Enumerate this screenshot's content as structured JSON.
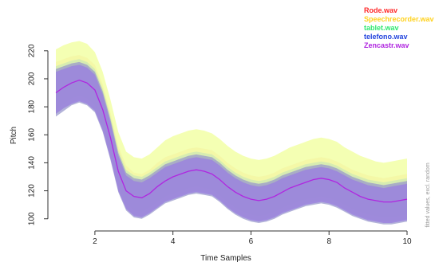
{
  "chart_data": {
    "type": "area",
    "xlabel": "Time Samples",
    "ylabel": "Pitch",
    "side_note": "fitted values, excl. random",
    "xlim": [
      1,
      10
    ],
    "ylim": [
      97,
      225
    ],
    "xticks": [
      2,
      4,
      6,
      8,
      10
    ],
    "yticks": [
      100,
      120,
      140,
      160,
      180,
      200,
      220
    ],
    "grid": false,
    "legend_position": "top-right",
    "x": [
      1,
      1.2,
      1.4,
      1.6,
      1.8,
      2,
      2.2,
      2.4,
      2.6,
      2.8,
      3,
      3.2,
      3.4,
      3.6,
      3.8,
      4,
      4.2,
      4.4,
      4.6,
      4.8,
      5,
      5.2,
      5.4,
      5.6,
      5.8,
      6,
      6.2,
      6.4,
      6.6,
      6.8,
      7,
      7.2,
      7.4,
      7.6,
      7.8,
      8,
      8.2,
      8.4,
      8.6,
      8.8,
      9,
      9.2,
      9.4,
      9.6,
      9.8,
      10
    ],
    "series": [
      {
        "name": "Rode.wav",
        "color": "#ff2a2a",
        "fill": "#ffc8a0",
        "upper": [
          212,
          214,
          216,
          217,
          215,
          210,
          196,
          176,
          152,
          138,
          133,
          132,
          135,
          140,
          144,
          146,
          148,
          150,
          151,
          150,
          149,
          145,
          140,
          136,
          133,
          131,
          130,
          131,
          133,
          136,
          138,
          140,
          142,
          143,
          144,
          143,
          141,
          138,
          135,
          133,
          131,
          130,
          129,
          130,
          131,
          132
        ],
        "lower": [
          178,
          182,
          186,
          188,
          186,
          181,
          167,
          147,
          124,
          111,
          106,
          105,
          108,
          112,
          116,
          118,
          120,
          122,
          123,
          122,
          121,
          117,
          112,
          108,
          105,
          103,
          102,
          103,
          105,
          108,
          110,
          112,
          114,
          115,
          116,
          115,
          113,
          110,
          107,
          105,
          103,
          102,
          101,
          101,
          102,
          103
        ]
      },
      {
        "name": "Speechrecorder.wav",
        "color": "#ffd21f",
        "fill": "#f2ffa6",
        "upper": [
          221,
          224,
          226,
          227,
          225,
          219,
          205,
          185,
          162,
          148,
          144,
          143,
          146,
          151,
          156,
          159,
          161,
          163,
          164,
          163,
          161,
          157,
          152,
          148,
          145,
          143,
          142,
          143,
          145,
          148,
          151,
          153,
          155,
          157,
          158,
          157,
          155,
          151,
          148,
          145,
          143,
          141,
          140,
          141,
          142,
          143
        ],
        "lower": [
          178,
          182,
          186,
          188,
          186,
          181,
          167,
          147,
          124,
          111,
          106,
          105,
          108,
          112,
          116,
          118,
          120,
          122,
          123,
          122,
          121,
          117,
          112,
          108,
          105,
          103,
          102,
          103,
          105,
          108,
          110,
          112,
          114,
          115,
          116,
          115,
          113,
          110,
          107,
          105,
          103,
          102,
          101,
          101,
          102,
          103
        ]
      },
      {
        "name": "tablet.wav",
        "color": "#2ee86e",
        "fill": "#cde8b4",
        "upper": [
          209,
          211,
          213,
          214,
          212,
          207,
          193,
          173,
          149,
          135,
          131,
          130,
          133,
          137,
          141,
          143,
          145,
          147,
          148,
          147,
          146,
          142,
          137,
          133,
          130,
          128,
          127,
          128,
          130,
          133,
          135,
          137,
          139,
          140,
          141,
          140,
          138,
          135,
          132,
          130,
          128,
          127,
          126,
          127,
          128,
          129
        ],
        "lower": [
          175,
          179,
          183,
          185,
          183,
          178,
          164,
          144,
          121,
          108,
          103,
          102,
          105,
          109,
          113,
          115,
          117,
          119,
          120,
          119,
          118,
          114,
          109,
          105,
          102,
          100,
          99,
          100,
          102,
          105,
          107,
          109,
          111,
          112,
          113,
          112,
          110,
          107,
          104,
          102,
          100,
          99,
          98,
          98,
          99,
          100
        ]
      },
      {
        "name": "telefono.wav",
        "color": "#2244dd",
        "fill": "#9a9acc",
        "upper": [
          207,
          209,
          211,
          212,
          210,
          205,
          191,
          171,
          147,
          133,
          129,
          128,
          131,
          135,
          139,
          141,
          143,
          145,
          146,
          145,
          144,
          140,
          135,
          131,
          128,
          126,
          125,
          126,
          128,
          131,
          133,
          135,
          137,
          138,
          139,
          138,
          136,
          133,
          130,
          128,
          126,
          125,
          124,
          125,
          126,
          127
        ],
        "lower": [
          173,
          177,
          181,
          183,
          181,
          176,
          162,
          142,
          119,
          106,
          101,
          100,
          103,
          107,
          111,
          113,
          115,
          117,
          118,
          117,
          116,
          112,
          107,
          103,
          100,
          98,
          97,
          98,
          100,
          103,
          105,
          107,
          109,
          110,
          111,
          110,
          108,
          105,
          102,
          100,
          98,
          97,
          96,
          96,
          97,
          98
        ]
      },
      {
        "name": "Zencastr.wav",
        "color": "#b026e0",
        "fill": "#9a7ee0",
        "fit": [
          190,
          194,
          197,
          199,
          197,
          192,
          178,
          158,
          134,
          120,
          116,
          115,
          118,
          123,
          127,
          130,
          132,
          134,
          135,
          134,
          132,
          128,
          123,
          119,
          116,
          114,
          113,
          114,
          116,
          119,
          122,
          124,
          126,
          128,
          129,
          128,
          126,
          122,
          119,
          116,
          114,
          113,
          112,
          112,
          113,
          114
        ],
        "upper": [
          205,
          207,
          209,
          210,
          208,
          203,
          189,
          169,
          145,
          131,
          127,
          126,
          129,
          133,
          137,
          139,
          141,
          143,
          144,
          143,
          142,
          138,
          133,
          129,
          126,
          124,
          123,
          124,
          126,
          129,
          131,
          133,
          135,
          136,
          137,
          136,
          134,
          131,
          128,
          126,
          124,
          123,
          122,
          123,
          124,
          125
        ],
        "lower": [
          175,
          179,
          182,
          184,
          182,
          177,
          163,
          143,
          120,
          107,
          102,
          101,
          104,
          108,
          112,
          114,
          116,
          118,
          119,
          118,
          117,
          113,
          108,
          104,
          101,
          99,
          98,
          99,
          101,
          104,
          106,
          108,
          110,
          111,
          112,
          111,
          109,
          106,
          103,
          101,
          99,
          98,
          97,
          97,
          98,
          99
        ]
      }
    ]
  }
}
